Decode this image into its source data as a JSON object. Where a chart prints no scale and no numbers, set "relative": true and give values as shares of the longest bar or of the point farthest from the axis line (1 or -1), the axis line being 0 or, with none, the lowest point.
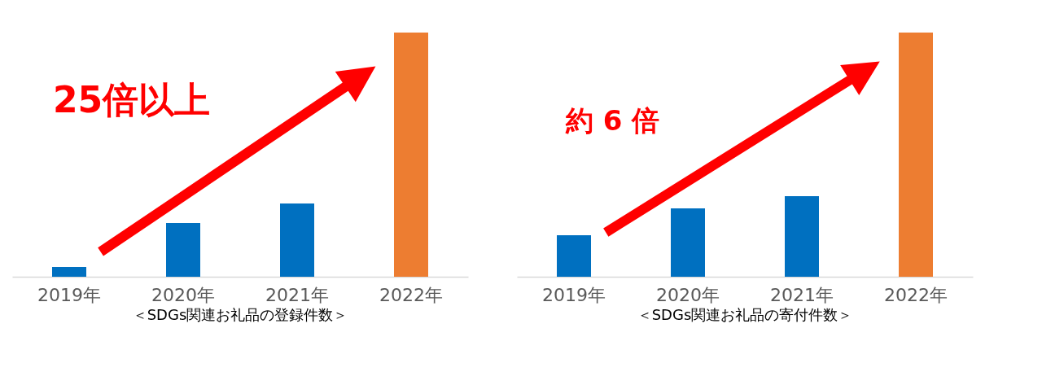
{
  "chart_data": [
    {
      "type": "bar",
      "title": "＜SDGs関連お礼品の登録件数＞",
      "relative": true,
      "categories": [
        "2019年",
        "2020年",
        "2021年",
        "2022年"
      ],
      "values": [
        0.04,
        0.22,
        0.3,
        1
      ],
      "colors": [
        "#0070c0",
        "#0070c0",
        "#0070c0",
        "#ed7d31"
      ],
      "annotations": [
        "25倍以上"
      ]
    },
    {
      "type": "bar",
      "title": "＜SDGs関連お礼品の寄付件数＞",
      "relative": true,
      "categories": [
        "2019年",
        "2020年",
        "2021年",
        "2022年"
      ],
      "values": [
        0.17,
        0.28,
        0.33,
        1
      ],
      "colors": [
        "#0070c0",
        "#0070c0",
        "#0070c0",
        "#ed7d31"
      ],
      "annotations": [
        "約 6 倍"
      ]
    }
  ]
}
